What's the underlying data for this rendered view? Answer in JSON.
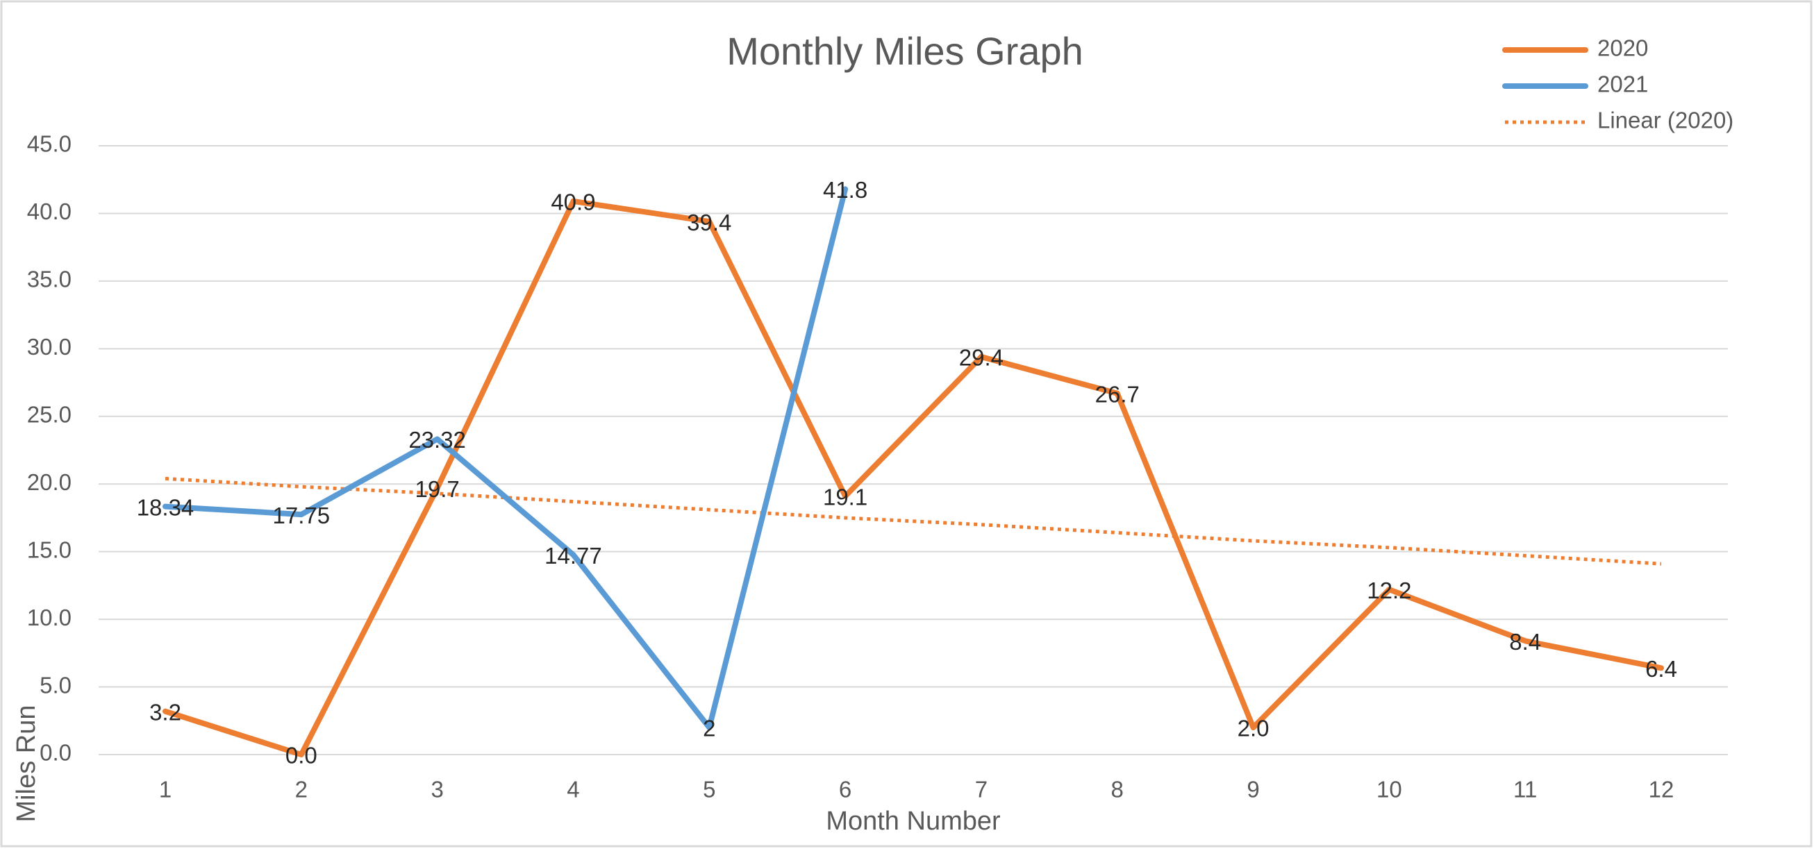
{
  "chart_data": {
    "type": "line",
    "title": "Monthly Miles Graph",
    "x_label": "Month Number",
    "y_label": "Miles Run",
    "categories": [
      "1",
      "2",
      "3",
      "4",
      "5",
      "6",
      "7",
      "8",
      "9",
      "10",
      "11",
      "12"
    ],
    "series": [
      {
        "name": "2020",
        "color": "#ED7D31",
        "values": [
          3.2,
          0,
          19.7,
          40.9,
          39.4,
          19.1,
          29.4,
          26.7,
          2,
          12.2,
          8.4,
          6.4
        ],
        "value_labels": [
          "3.2",
          "0.0",
          "19.7",
          "40.9",
          "39.4",
          "19.1",
          "29.4",
          "26.7",
          "2.0",
          "12.2",
          "8.4",
          "6.4"
        ]
      },
      {
        "name": "2021",
        "color": "#5B9BD5",
        "values": [
          18.34,
          17.75,
          23.32,
          14.77,
          2,
          41.8,
          null,
          null,
          null,
          null,
          null,
          null
        ],
        "value_labels": [
          "18.34",
          "17.75",
          "23.32",
          "14.77",
          "2",
          "41.8",
          null,
          null,
          null,
          null,
          null,
          null
        ]
      },
      {
        "name": "Linear (2020)",
        "color": "#ED7D31",
        "dotted": true,
        "values": [
          20.4,
          19.8,
          19.3,
          18.7,
          18.1,
          17.5,
          17.0,
          16.4,
          15.8,
          15.3,
          14.7,
          14.1
        ]
      }
    ],
    "ylim": [
      0,
      45
    ],
    "yticks": [
      {
        "value": 0,
        "label": "0.0"
      },
      {
        "value": 5,
        "label": "5.0"
      },
      {
        "value": 10,
        "label": "10.0"
      },
      {
        "value": 15,
        "label": "15.0"
      },
      {
        "value": 20,
        "label": "20.0"
      },
      {
        "value": 25,
        "label": "25.0"
      },
      {
        "value": 30,
        "label": "30.0"
      },
      {
        "value": 35,
        "label": "35.0"
      },
      {
        "value": 40,
        "label": "40.0"
      },
      {
        "value": 45,
        "label": "45.0"
      }
    ],
    "grid": true,
    "legend": "top-right"
  }
}
